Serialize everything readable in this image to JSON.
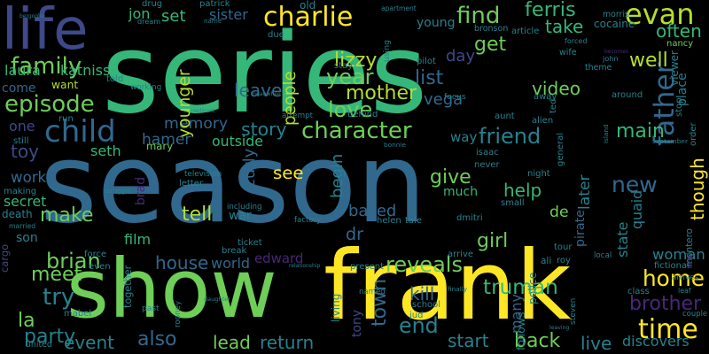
{
  "palette": {
    "background": "#000000",
    "green": "#35b779",
    "yellow": "#fde725",
    "blue": "#31688e",
    "teal": "#26828e",
    "purple": "#482878",
    "light_green": "#6ece58",
    "lime": "#b5de2b",
    "dark_blue": "#3e4989",
    "cyan": "#1f9e89"
  },
  "words": [
    {
      "text": "season",
      "color": "#31688e"
    },
    {
      "text": "series",
      "color": "#35b779"
    },
    {
      "text": "show",
      "color": "#6ece58"
    },
    {
      "text": "frank",
      "color": "#fde725"
    },
    {
      "text": "life",
      "color": "#3e4989"
    },
    {
      "text": "charlie",
      "color": "#fde725"
    },
    {
      "text": "family",
      "color": "#6ece58"
    },
    {
      "text": "episode",
      "color": "#6ece58"
    },
    {
      "text": "character",
      "color": "#6ece58"
    },
    {
      "text": "child",
      "color": "#31688e"
    },
    {
      "text": "father",
      "color": "#31688e"
    },
    {
      "text": "evan",
      "color": "#b5de2b"
    },
    {
      "text": "find",
      "color": "#6ece58"
    },
    {
      "text": "year",
      "color": "#6ece58"
    },
    {
      "text": "mother",
      "color": "#b5de2b"
    },
    {
      "text": "friend",
      "color": "#26828e"
    },
    {
      "text": "story",
      "color": "#26828e"
    },
    {
      "text": "memory",
      "color": "#31688e"
    },
    {
      "text": "people",
      "color": "#b5de2b"
    },
    {
      "text": "younger",
      "color": "#b5de2b"
    },
    {
      "text": "ferris",
      "color": "#35b779"
    },
    {
      "text": "take",
      "color": "#35b779"
    },
    {
      "text": "often",
      "color": "#35b779"
    },
    {
      "text": "well",
      "color": "#b5de2b"
    },
    {
      "text": "video",
      "color": "#6ece58"
    },
    {
      "text": "main",
      "color": "#35b779"
    },
    {
      "text": "new",
      "color": "#31688e"
    },
    {
      "text": "though",
      "color": "#fde725"
    },
    {
      "text": "time",
      "color": "#fde725"
    },
    {
      "text": "home",
      "color": "#fde725"
    },
    {
      "text": "brother",
      "color": "#482878"
    },
    {
      "text": "woman",
      "color": "#26828e"
    },
    {
      "text": "truman",
      "color": "#35b779"
    },
    {
      "text": "reveals",
      "color": "#6ece58"
    },
    {
      "text": "end",
      "color": "#26828e"
    },
    {
      "text": "town",
      "color": "#31688e"
    },
    {
      "text": "start",
      "color": "#26828e"
    },
    {
      "text": "back",
      "color": "#6ece58"
    },
    {
      "text": "live",
      "color": "#26828e"
    },
    {
      "text": "discovers",
      "color": "#26828e"
    },
    {
      "text": "brian",
      "color": "#6ece58"
    },
    {
      "text": "house",
      "color": "#31688e"
    },
    {
      "text": "world",
      "color": "#31688e"
    },
    {
      "text": "edward",
      "color": "#482878"
    },
    {
      "text": "meet",
      "color": "#6ece58"
    },
    {
      "text": "try",
      "color": "#26828e"
    },
    {
      "text": "party",
      "color": "#26828e"
    },
    {
      "text": "la",
      "color": "#6ece58"
    },
    {
      "text": "event",
      "color": "#26828e"
    },
    {
      "text": "also",
      "color": "#31688e"
    },
    {
      "text": "lead",
      "color": "#6ece58"
    },
    {
      "text": "return",
      "color": "#26828e"
    },
    {
      "text": "tony",
      "color": "#3e4989"
    },
    {
      "text": "tell",
      "color": "#b5de2b"
    },
    {
      "text": "make",
      "color": "#6ece58"
    },
    {
      "text": "work",
      "color": "#31688e"
    },
    {
      "text": "toy",
      "color": "#3e4989"
    },
    {
      "text": "one",
      "color": "#3e4989"
    },
    {
      "text": "see",
      "color": "#fde725"
    },
    {
      "text": "give",
      "color": "#6ece58"
    },
    {
      "text": "help",
      "color": "#35b779"
    },
    {
      "text": "de",
      "color": "#6ece58"
    },
    {
      "text": "begin",
      "color": "#26828e"
    },
    {
      "text": "based",
      "color": "#31688e"
    },
    {
      "text": "dr",
      "color": "#31688e"
    },
    {
      "text": "girl",
      "color": "#6ece58"
    },
    {
      "text": "kill",
      "color": "#31688e"
    },
    {
      "text": "many",
      "color": "#31688e"
    },
    {
      "text": "love",
      "color": "#6ece58"
    },
    {
      "text": "list",
      "color": "#31688e"
    },
    {
      "text": "get",
      "color": "#6ece58"
    },
    {
      "text": "day",
      "color": "#3e4989"
    },
    {
      "text": "lizzy",
      "color": "#b5de2b"
    },
    {
      "text": "leave",
      "color": "#31688e"
    },
    {
      "text": "sister",
      "color": "#31688e"
    },
    {
      "text": "set",
      "color": "#35b779"
    },
    {
      "text": "jon",
      "color": "#35b779"
    },
    {
      "text": "want",
      "color": "#b5de2b"
    },
    {
      "text": "laura",
      "color": "#35b779"
    },
    {
      "text": "katniss",
      "color": "#35b779"
    },
    {
      "text": "hamer",
      "color": "#31688e"
    },
    {
      "text": "seth",
      "color": "#35b779"
    },
    {
      "text": "curly",
      "color": "#31688e"
    },
    {
      "text": "outside",
      "color": "#35b779"
    },
    {
      "text": "mary",
      "color": "#6ece58"
    },
    {
      "text": "film",
      "color": "#35b779"
    },
    {
      "text": "war",
      "color": "#26828e"
    },
    {
      "text": "son",
      "color": "#26828e"
    },
    {
      "text": "cargo",
      "color": "#3e4989"
    },
    {
      "text": "secret",
      "color": "#35b779"
    },
    {
      "text": "death",
      "color": "#26828e"
    },
    {
      "text": "way",
      "color": "#26828e"
    },
    {
      "text": "much",
      "color": "#35b779"
    },
    {
      "text": "vega",
      "color": "#31688e"
    },
    {
      "text": "quaid",
      "color": "#26828e"
    },
    {
      "text": "state",
      "color": "#26828e"
    },
    {
      "text": "pirate",
      "color": "#31688e"
    },
    {
      "text": "later",
      "color": "#26828e"
    },
    {
      "text": "cocaine",
      "color": "#26828e"
    },
    {
      "text": "young",
      "color": "#26828e"
    },
    {
      "text": "working",
      "color": "#26828e"
    },
    {
      "text": "come",
      "color": "#31688e"
    },
    {
      "text": "brad",
      "color": "#482878"
    },
    {
      "text": "together",
      "color": "#26828e"
    },
    {
      "text": "living",
      "color": "#26828e"
    },
    {
      "text": "follows",
      "color": "#26828e"
    },
    {
      "text": "montero",
      "color": "#26828e"
    },
    {
      "text": "bergoglio",
      "color": "#26828e"
    },
    {
      "text": "drug",
      "color": "#26828e"
    },
    {
      "text": "patrick",
      "color": "#26828e"
    },
    {
      "text": "apartment",
      "color": "#26828e"
    },
    {
      "text": "morris",
      "color": "#26828e"
    },
    {
      "text": "dream",
      "color": "#26828e"
    },
    {
      "text": "name",
      "color": "#26828e"
    },
    {
      "text": "due",
      "color": "#26828e"
    },
    {
      "text": "bronson",
      "color": "#26828e"
    },
    {
      "text": "forced",
      "color": "#26828e"
    },
    {
      "text": "article",
      "color": "#26828e"
    },
    {
      "text": "wife",
      "color": "#26828e"
    },
    {
      "text": "becomes",
      "color": "#482878"
    },
    {
      "text": "nancy",
      "color": "#6ece58"
    },
    {
      "text": "john",
      "color": "#26828e"
    },
    {
      "text": "viewer",
      "color": "#26828e"
    },
    {
      "text": "told",
      "color": "#26828e"
    },
    {
      "text": "stay",
      "color": "#26828e"
    },
    {
      "text": "pilot",
      "color": "#26828e"
    },
    {
      "text": "theme",
      "color": "#26828e"
    },
    {
      "text": "meanwhile",
      "color": "#26828e"
    },
    {
      "text": "focus",
      "color": "#26828e"
    },
    {
      "text": "away",
      "color": "#26828e"
    },
    {
      "text": "around",
      "color": "#26828e"
    },
    {
      "text": "run",
      "color": "#26828e"
    },
    {
      "text": "replicant",
      "color": "#26828e"
    },
    {
      "text": "attempt",
      "color": "#26828e"
    },
    {
      "text": "behind",
      "color": "#26828e"
    },
    {
      "text": "aunt",
      "color": "#26828e"
    },
    {
      "text": "alien",
      "color": "#26828e"
    },
    {
      "text": "september",
      "color": "#26828e"
    },
    {
      "text": "still",
      "color": "#26828e"
    },
    {
      "text": "bonnie",
      "color": "#26828e"
    },
    {
      "text": "general",
      "color": "#26828e"
    },
    {
      "text": "isaac",
      "color": "#26828e"
    },
    {
      "text": "never",
      "color": "#26828e"
    },
    {
      "text": "television",
      "color": "#26828e"
    },
    {
      "text": "letter",
      "color": "#26828e"
    },
    {
      "text": "night",
      "color": "#26828e"
    },
    {
      "text": "making",
      "color": "#26828e"
    },
    {
      "text": "struggle",
      "color": "#26828e"
    },
    {
      "text": "including",
      "color": "#26828e"
    },
    {
      "text": "factory",
      "color": "#26828e"
    },
    {
      "text": "small",
      "color": "#26828e"
    },
    {
      "text": "married",
      "color": "#26828e"
    },
    {
      "text": "helen",
      "color": "#26828e"
    },
    {
      "text": "tale",
      "color": "#26828e"
    },
    {
      "text": "dmitri",
      "color": "#26828e"
    },
    {
      "text": "ticket",
      "color": "#26828e"
    },
    {
      "text": "break",
      "color": "#26828e"
    },
    {
      "text": "tour",
      "color": "#26828e"
    },
    {
      "text": "local",
      "color": "#26828e"
    },
    {
      "text": "fictional",
      "color": "#26828e"
    },
    {
      "text": "force",
      "color": "#26828e"
    },
    {
      "text": "even",
      "color": "#26828e"
    },
    {
      "text": "relationship",
      "color": "#26828e"
    },
    {
      "text": "present",
      "color": "#26828e"
    },
    {
      "text": "arrive",
      "color": "#26828e"
    },
    {
      "text": "roy",
      "color": "#26828e"
    },
    {
      "text": "arrives",
      "color": "#26828e"
    },
    {
      "text": "finally",
      "color": "#26828e"
    },
    {
      "text": "named",
      "color": "#26828e"
    },
    {
      "text": "class",
      "color": "#26828e"
    },
    {
      "text": "leaf",
      "color": "#26828e"
    },
    {
      "text": "couple",
      "color": "#26828e"
    },
    {
      "text": "school",
      "color": "#26828e"
    },
    {
      "text": "jud",
      "color": "#26828e"
    },
    {
      "text": "leaving",
      "color": "#26828e"
    },
    {
      "text": "steven",
      "color": "#26828e"
    },
    {
      "text": "mabel",
      "color": "#26828e"
    },
    {
      "text": "past",
      "color": "#26828e"
    },
    {
      "text": "rooney",
      "color": "#26828e"
    },
    {
      "text": "daughter",
      "color": "#26828e"
    },
    {
      "text": "old",
      "color": "#26828e"
    },
    {
      "text": "united",
      "color": "#26828e"
    },
    {
      "text": "using",
      "color": "#26828e"
    },
    {
      "text": "island",
      "color": "#26828e"
    },
    {
      "text": "order",
      "color": "#26828e"
    },
    {
      "text": "ted",
      "color": "#26828e"
    },
    {
      "text": "stop",
      "color": "#26828e"
    },
    {
      "text": "place",
      "color": "#26828e"
    },
    {
      "text": "police",
      "color": "#26828e"
    },
    {
      "text": "ali",
      "color": "#26828e"
    },
    {
      "text": "real",
      "color": "#482878"
    },
    {
      "text": "like",
      "color": "#482878"
    },
    {
      "text": "n",
      "color": "#6ece58"
    },
    {
      "text": "plot",
      "color": "#26828e"
    }
  ]
}
